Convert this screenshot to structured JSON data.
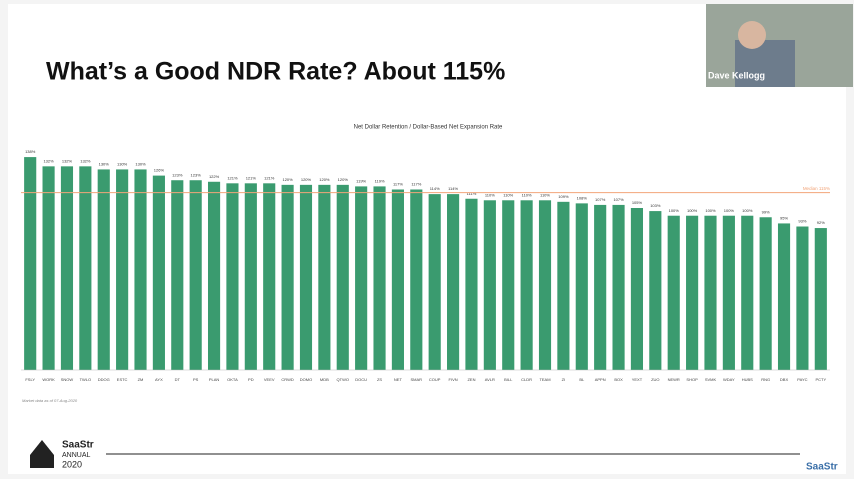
{
  "slide": {
    "title": "What’s a Good NDR Rate?  About 115%",
    "speaker": "Dave Kellogg",
    "logo": "SaaStr",
    "logo_sub": "ANNUAL",
    "logo_year": "2020",
    "brand": "SaaStr"
  },
  "chart_data": {
    "type": "bar",
    "title": "Net Dollar Retention / Dollar-Based Net Expansion Rate",
    "note": "Market data as of 07-Aug-2020",
    "color": "#3a9b6f",
    "categories": [
      "FSLY",
      "WORK",
      "SNOW",
      "TWLO",
      "DDOG",
      "ESTC",
      "ZM",
      "AYX",
      "DT",
      "PS",
      "PLAN",
      "OKTA",
      "PD",
      "VEEV",
      "CRWD",
      "DOMO",
      "MDB",
      "QTWO",
      "DOCU",
      "ZS",
      "NET",
      "SMAR",
      "COUP",
      "FIVN",
      "ZEN",
      "AVLR",
      "BILL",
      "CLDR",
      "TEAM",
      "ZI",
      "BL",
      "APPN",
      "BOX",
      "YEXT",
      "ZUO",
      "NEWR",
      "SHOP",
      "SVMK",
      "WDAY",
      "HUBS",
      "RNG",
      "DBX",
      "PAYC",
      "PCTY"
    ],
    "values": [
      138,
      132,
      132,
      132,
      130,
      130,
      130,
      126,
      123,
      123,
      122,
      121,
      121,
      121,
      120,
      120,
      120,
      120,
      119,
      119,
      117,
      117,
      114,
      114,
      111,
      110,
      110,
      110,
      110,
      109,
      108,
      107,
      107,
      105,
      103,
      100,
      100,
      100,
      100,
      100,
      99,
      95,
      93,
      92
    ],
    "value_labels": [
      "138%",
      "132%",
      "132%",
      "132%",
      "130%",
      "130%",
      "130%",
      "126%",
      "123%",
      "123%",
      "122%",
      "121%",
      "121%",
      "121%",
      "120%",
      "120%",
      "120%",
      "120%",
      "119%",
      "119%",
      "117%",
      "117%",
      "114%",
      "114%",
      "111%",
      "110%",
      "110%",
      "110%",
      "110%",
      "109%",
      "108%",
      "107%",
      "107%",
      "105%",
      "103%",
      "100%",
      "100%",
      "100%",
      "100%",
      "100%",
      "99%",
      "95%",
      "93%",
      "92%"
    ],
    "ylim": [
      0,
      140
    ],
    "median": {
      "value": 115,
      "label": "Median 115%",
      "color": "#f2a57a"
    }
  }
}
